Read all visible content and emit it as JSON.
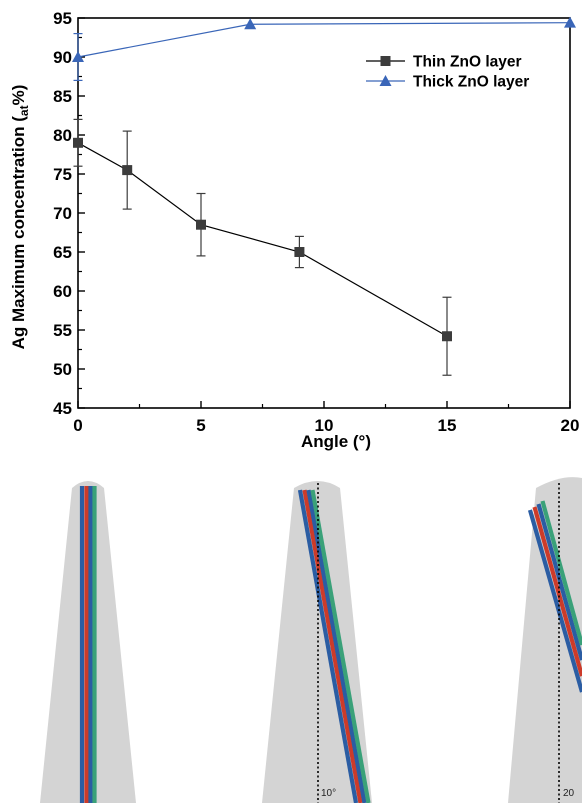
{
  "chart_data": {
    "type": "line",
    "xlabel": "Angle (°)",
    "ylabel_prefix": "Ag Maximum concentration (",
    "ylabel_sub": "at",
    "ylabel_suffix": "%)",
    "xlim": [
      0,
      20
    ],
    "ylim": [
      45,
      95
    ],
    "xticks": [
      0,
      5,
      10,
      15,
      20
    ],
    "yticks": [
      45,
      50,
      55,
      60,
      65,
      70,
      75,
      80,
      85,
      90,
      95
    ],
    "grid": false,
    "legend_position": "top-right",
    "series": [
      {
        "name": "Thin ZnO layer",
        "marker": "square",
        "color": "#3c3c3c",
        "points": [
          {
            "x": 0,
            "y": 79,
            "err_low": 76,
            "err_high": 82
          },
          {
            "x": 2,
            "y": 75.5,
            "err_low": 70.5,
            "err_high": 80.5
          },
          {
            "x": 5,
            "y": 68.5,
            "err_low": 64.5,
            "err_high": 72.5
          },
          {
            "x": 9,
            "y": 65,
            "err_low": 63,
            "err_high": 67
          },
          {
            "x": 15,
            "y": 54.2,
            "err_low": 49.2,
            "err_high": 59.2
          }
        ]
      },
      {
        "name": "Thick ZnO layer",
        "marker": "triangle",
        "color": "#3a66b8",
        "points": [
          {
            "x": 0,
            "y": 90,
            "err_low": 87,
            "err_high": 93
          },
          {
            "x": 7,
            "y": 94.2
          },
          {
            "x": 20,
            "y": 94.4
          }
        ]
      }
    ]
  },
  "illustrations": [
    {
      "tilt_label": ""
    },
    {
      "tilt_label": "10°"
    },
    {
      "tilt_label": "20"
    }
  ],
  "colors": {
    "cone": "#d4d4d4",
    "stripe_blue": "#2b5da3",
    "stripe_red": "#cc3b2a",
    "stripe_green": "#3aa179",
    "dotted_line": "#000000"
  }
}
